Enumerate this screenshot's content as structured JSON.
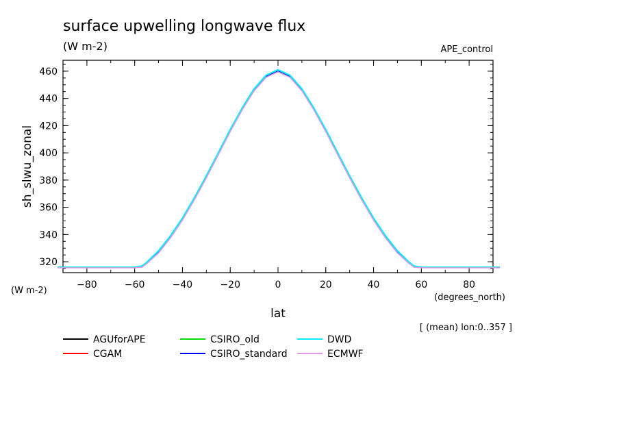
{
  "chart_data": {
    "type": "line",
    "title": "surface upwelling longwave flux",
    "subtitle": "(W m-2)",
    "dataset_label": "APE_control",
    "xlabel": "lat",
    "x_units": "(degrees_north)",
    "ylabel": "sh_slwu_zonal",
    "y_units": "(W m-2)",
    "footnote": "[ (mean) lon:0..357 ]",
    "xlim": [
      -90,
      90
    ],
    "ylim": [
      312,
      468
    ],
    "x_ticks": [
      -80,
      -60,
      -40,
      -20,
      0,
      20,
      40,
      60,
      80
    ],
    "y_ticks": [
      320,
      340,
      360,
      380,
      400,
      420,
      440,
      460
    ],
    "grid": false,
    "legend_position": "bottom",
    "x": [
      -90,
      -80,
      -70,
      -60,
      -57,
      -55,
      -50,
      -45,
      -40,
      -35,
      -30,
      -25,
      -20,
      -15,
      -10,
      -5,
      0,
      5,
      10,
      15,
      20,
      25,
      30,
      35,
      40,
      45,
      50,
      55,
      57,
      60,
      70,
      80,
      90
    ],
    "series": [
      {
        "name": "AGUforAPE",
        "color": "#000000",
        "values": [
          316,
          316,
          316,
          316,
          316.5,
          319,
          327,
          338,
          351,
          366,
          382,
          399,
          416,
          432,
          446,
          456,
          460,
          456,
          446,
          432,
          416,
          399,
          382,
          366,
          351,
          338,
          327,
          319,
          316.5,
          316,
          316,
          316,
          316
        ]
      },
      {
        "name": "CGAM",
        "color": "#ff0000",
        "values": [
          316,
          316,
          316,
          316,
          316.5,
          319,
          327,
          338,
          351,
          366,
          382,
          399,
          416,
          432,
          446,
          456,
          460,
          456,
          446,
          432,
          416,
          399,
          382,
          366,
          351,
          338,
          327,
          319,
          316.5,
          316,
          316,
          316,
          316
        ]
      },
      {
        "name": "CSIRO_old",
        "color": "#00dd00",
        "values": [
          316,
          316,
          316,
          316,
          316.5,
          319,
          327,
          338,
          351,
          366,
          382,
          399,
          416,
          432,
          446,
          456,
          460,
          456,
          446,
          432,
          416,
          399,
          382,
          366,
          351,
          338,
          327,
          319,
          316.5,
          316,
          316,
          316,
          316
        ]
      },
      {
        "name": "CSIRO_standard",
        "color": "#0000ff",
        "values": [
          316,
          316,
          316,
          316,
          316.5,
          319,
          327,
          338,
          351,
          366,
          382,
          399,
          416,
          432,
          446,
          456,
          460,
          456,
          446,
          432,
          416,
          399,
          382,
          366,
          351,
          338,
          327,
          319,
          316.5,
          316,
          316,
          316,
          316
        ]
      },
      {
        "name": "DWD",
        "color": "#00eeff",
        "values": [
          316,
          316,
          316,
          316,
          316.8,
          319.5,
          328,
          339,
          352,
          367,
          383,
          400,
          417,
          433,
          447,
          457,
          461,
          457,
          447,
          433,
          417,
          400,
          383,
          367,
          352,
          339,
          328,
          319.5,
          316.8,
          316,
          316,
          316,
          316
        ]
      },
      {
        "name": "ECMWF",
        "color": "#dd99dd",
        "values": [
          315.5,
          315.5,
          315.5,
          315.5,
          316,
          318.5,
          326.5,
          337.5,
          350.5,
          365.5,
          381.5,
          398.5,
          415.5,
          431.5,
          445.5,
          455.5,
          459.5,
          455.5,
          445.5,
          431.5,
          415.5,
          398.5,
          381.5,
          365.5,
          350.5,
          337.5,
          326.5,
          318.5,
          316,
          315.5,
          315.5,
          315.5,
          315.5
        ]
      }
    ]
  }
}
